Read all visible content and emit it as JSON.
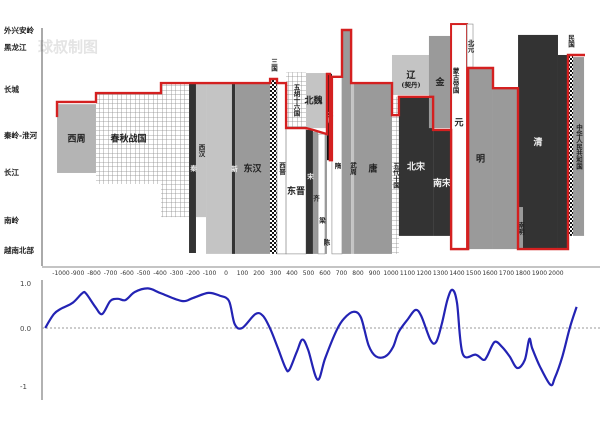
{
  "watermark": "球叔制图",
  "chart_data": [
    {
      "type": "bar",
      "subtype": "range-bar",
      "y_levels": [
        "越南北部",
        "南岭",
        "长江",
        "秦岭-淮河",
        "长城",
        "黑龙江",
        "外兴安岭"
      ],
      "x_ticks": [
        "-1000",
        "-900",
        "-800",
        "-700",
        "-600",
        "-500",
        "-400",
        "-300",
        "-200",
        "-100",
        "0",
        "100",
        "200",
        "300",
        "400",
        "500",
        "600",
        "700",
        "800",
        "900",
        "1000",
        "1100",
        "1200",
        "1300",
        "1400",
        "1500",
        "1600",
        "1700",
        "1800",
        "1900",
        "2000"
      ],
      "dynasties": [
        {
          "label": "西周",
          "start": -1024,
          "end": -788,
          "north": 3.67,
          "south": 1.98,
          "fill": "light"
        },
        {
          "label": "春秋战国",
          "start": -788,
          "end": -394,
          "north": 3.91,
          "south": 1.75,
          "fill": "grid"
        },
        {
          "label": "",
          "start": -394,
          "end": -224,
          "north": 4.14,
          "south": 1.06,
          "fill": "grid"
        },
        {
          "label": "秦",
          "start": -224,
          "end": -182,
          "north": 4.14,
          "south": -0.1,
          "fill": "dark"
        },
        {
          "label": "西汉",
          "start": -182,
          "end": -121,
          "north": 4.14,
          "south": 1.06,
          "fill": "pale"
        },
        {
          "label": "",
          "start": -121,
          "end": 36,
          "north": 4.14,
          "south": -0.13,
          "fill": "pale"
        },
        {
          "label": "新",
          "start": 36,
          "end": 55,
          "north": 4.14,
          "south": -0.13,
          "fill": "dark"
        },
        {
          "label": "东汉",
          "start": 55,
          "end": 267,
          "north": 4.14,
          "south": -0.13,
          "fill": "mid"
        },
        {
          "label": "三国",
          "start": 267,
          "end": 309,
          "north": 4.24,
          "south": -0.13,
          "fill": "checker"
        },
        {
          "label": "西晋",
          "start": 309,
          "end": 364,
          "north": 4.14,
          "south": -0.13,
          "fill": "white"
        },
        {
          "label": "五胡十六国",
          "start": 364,
          "end": 485,
          "north": 4.4,
          "south": 3.15,
          "fill": "grid"
        },
        {
          "label": "东晋",
          "start": 364,
          "end": 485,
          "north": 3.15,
          "south": -0.13,
          "fill": "white"
        },
        {
          "label": "宋",
          "start": 485,
          "end": 527,
          "north": 3.11,
          "south": -0.13,
          "fill": "dark"
        },
        {
          "label": "齐",
          "start": 527,
          "end": 558,
          "north": 3.07,
          "south": -0.13,
          "fill": "mid"
        },
        {
          "label": "梁",
          "start": 558,
          "end": 600,
          "north": 3.02,
          "south": -0.13,
          "fill": "white"
        },
        {
          "label": "陈",
          "start": 600,
          "end": 612,
          "north": 3.02,
          "south": -0.13,
          "fill": "mid"
        },
        {
          "label": "北魏",
          "start": 485,
          "end": 612,
          "north": 4.38,
          "south": 3.15,
          "fill": "pale"
        },
        {
          "label": "北周",
          "start": 612,
          "end": 642,
          "north": 4.36,
          "south": 2.32,
          "fill": "black"
        },
        {
          "label": "隋",
          "start": 642,
          "end": 703,
          "north": 4.29,
          "south": -0.13,
          "fill": "white"
        },
        {
          "label": "",
          "start": 703,
          "end": 758,
          "north": 6.0,
          "south": -0.13,
          "fill": "mid"
        },
        {
          "label": "武周",
          "start": 758,
          "end": 776,
          "north": 4.14,
          "south": -0.13,
          "fill": "pale"
        },
        {
          "label": "唐",
          "start": 776,
          "end": 1006,
          "north": 4.14,
          "south": -0.13,
          "fill": "mid"
        },
        {
          "label": "辽",
          "sublabel": "(契丹)",
          "start": 1006,
          "end": 1236,
          "north": 4.81,
          "south": 3.87,
          "fill": "pale"
        },
        {
          "label": "五代十国",
          "start": 1006,
          "end": 1048,
          "north": 3.83,
          "south": -0.13,
          "fill": "grid"
        },
        {
          "label": "北宋",
          "start": 1048,
          "end": 1255,
          "north": 3.83,
          "south": 0.47,
          "fill": "dark"
        },
        {
          "label": "金",
          "start": 1230,
          "end": 1364,
          "north": 5.65,
          "south": 3.15,
          "fill": "mid"
        },
        {
          "label": "南宋",
          "start": 1255,
          "end": 1364,
          "north": 3.11,
          "south": 0.47,
          "fill": "dark"
        },
        {
          "label": "元",
          "sublabel": "蒙古帝国",
          "start": 1364,
          "end": 1461,
          "north": 6.35,
          "south": 0.03,
          "fill": "white"
        },
        {
          "label": "北元",
          "start": 1461,
          "end": 1497,
          "north": 6.35,
          "south": 4.52,
          "fill": "white"
        },
        {
          "label": "明",
          "start": 1467,
          "end": 1618,
          "north": 4.5,
          "south": 0.03,
          "fill": "mid"
        },
        {
          "label": "",
          "start": 1618,
          "end": 1770,
          "north": 4.02,
          "south": 0.03,
          "fill": "mid"
        },
        {
          "label": "清",
          "start": 1770,
          "end": 2012,
          "north": 5.71,
          "south": 0.03,
          "fill": "dark"
        },
        {
          "label": "",
          "start": 2012,
          "end": 2073,
          "north": 4.81,
          "south": 0.03,
          "fill": "dark"
        },
        {
          "label": "南明",
          "start": 1770,
          "end": 1800,
          "north": 1.27,
          "south": 0.03,
          "fill": "mid"
        },
        {
          "label": "民国",
          "start": 2073,
          "end": 2103,
          "north": 4.81,
          "south": 0.47,
          "fill": "checker"
        },
        {
          "label": "中华人民共和国",
          "start": 2103,
          "end": 2170,
          "north": 4.76,
          "south": 0.47,
          "fill": "mid"
        }
      ],
      "frontier": [
        [
          -1024,
          3.39
        ],
        [
          -1024,
          3.72
        ],
        [
          -788,
          3.72
        ],
        [
          -788,
          3.91
        ],
        [
          -394,
          3.91
        ],
        [
          -394,
          4.14
        ],
        [
          267,
          4.14
        ],
        [
          267,
          4.24
        ],
        [
          309,
          4.24
        ],
        [
          309,
          4.14
        ],
        [
          364,
          4.14
        ],
        [
          364,
          3.15
        ],
        [
          485,
          3.15
        ],
        [
          527,
          3.11
        ],
        [
          612,
          3.02
        ],
        [
          612,
          4.36
        ],
        [
          630,
          4.36
        ],
        [
          630,
          2.32
        ],
        [
          642,
          2.32
        ],
        [
          642,
          4.29
        ],
        [
          703,
          4.29
        ],
        [
          703,
          6.0
        ],
        [
          758,
          6.0
        ],
        [
          758,
          4.14
        ],
        [
          1006,
          4.14
        ],
        [
          1006,
          3.43
        ],
        [
          1048,
          3.43
        ],
        [
          1048,
          3.83
        ],
        [
          1255,
          3.83
        ],
        [
          1255,
          3.11
        ],
        [
          1364,
          3.11
        ],
        [
          1364,
          0.03
        ],
        [
          1467,
          0.03
        ],
        [
          1467,
          4.5
        ],
        [
          1618,
          4.5
        ],
        [
          1618,
          4.02
        ],
        [
          1770,
          4.02
        ],
        [
          1770,
          0.03
        ],
        [
          2073,
          0.03
        ],
        [
          2073,
          4.81
        ],
        [
          2176,
          4.81
        ]
      ],
      "colors": {
        "frontier": "#d42020",
        "light": "#b4b4b4",
        "pale": "#c4c4c4",
        "mid": "#9a9a9a",
        "dark": "#333333",
        "black": "#111111",
        "white": "#ffffff",
        "grid": "#888888"
      }
    },
    {
      "type": "line",
      "y_ticks": [
        "1.0",
        "0.0",
        "-1"
      ],
      "ylim": [
        -1.1,
        1.1
      ],
      "reference_line": 0,
      "grid": false,
      "color": "#2323b4",
      "x": [
        -1096,
        -1043,
        -998,
        -929,
        -872,
        -849,
        -792,
        -751,
        -701,
        -655,
        -610,
        -553,
        -473,
        -393,
        -267,
        -199,
        -107,
        -39,
        18,
        52,
        98,
        178,
        224,
        269,
        315,
        361,
        384,
        429,
        463,
        498,
        555,
        601,
        670,
        715,
        772,
        818,
        864,
        909,
        966,
        1012,
        1046,
        1103,
        1148,
        1183,
        1240,
        1274,
        1308,
        1343,
        1372,
        1400,
        1434,
        1514,
        1560,
        1582,
        1628,
        1674,
        1719,
        1765,
        1811,
        1838,
        1856,
        1902,
        1966,
        1993,
        2039,
        2084,
        2125
      ],
      "y": [
        0,
        0.31,
        0.43,
        0.56,
        0.77,
        0.77,
        0.47,
        0.31,
        0.6,
        0.65,
        0.62,
        0.8,
        0.88,
        0.77,
        0.6,
        0.67,
        0.78,
        0.72,
        0.6,
        0.09,
        0,
        0.31,
        0.27,
        -0.02,
        -0.35,
        -0.69,
        -0.72,
        -0.41,
        -0.2,
        -0.38,
        -0.89,
        -0.52,
        -0.04,
        0.21,
        0.36,
        0.23,
        -0.3,
        -0.49,
        -0.49,
        -0.33,
        -0.07,
        0.2,
        0.4,
        0.27,
        -0.21,
        -0.24,
        0.09,
        0.64,
        0.85,
        0.56,
        -0.44,
        -0.46,
        -0.55,
        -0.49,
        -0.24,
        -0.33,
        -0.49,
        -0.69,
        -0.55,
        -0.19,
        -0.35,
        -0.66,
        -0.98,
        -0.86,
        -0.49,
        0.01,
        0.47
      ]
    }
  ]
}
